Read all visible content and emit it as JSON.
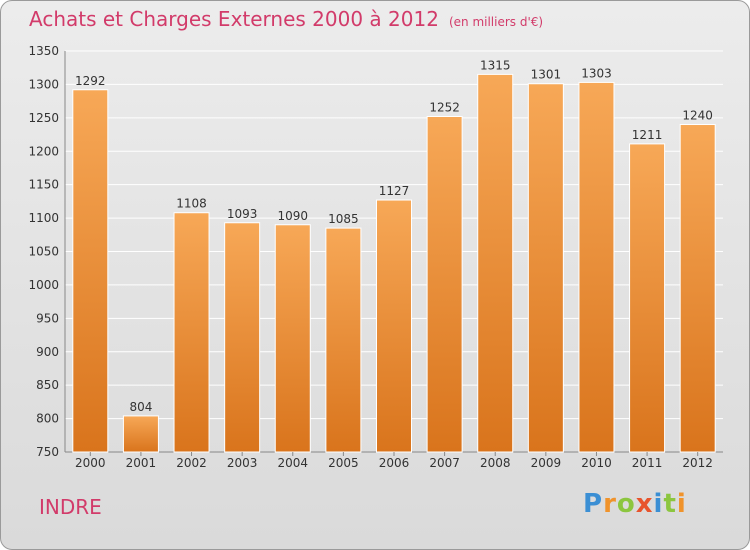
{
  "header": {
    "title": "Achats et Charges Externes 2000 à 2012",
    "subtitle": "(en milliers d'€)"
  },
  "footer": {
    "entity": "INDRE",
    "logo": "Proxiti",
    "logo_letters": [
      {
        "ch": "P",
        "color": "#3b8fd4"
      },
      {
        "ch": "r",
        "color": "#f0932b"
      },
      {
        "ch": "o",
        "color": "#8cc63f"
      },
      {
        "ch": "x",
        "color": "#e8542d"
      },
      {
        "ch": "i",
        "color": "#3b8fd4"
      },
      {
        "ch": "t",
        "color": "#8cc63f"
      },
      {
        "ch": "i",
        "color": "#f0932b"
      }
    ]
  },
  "colors": {
    "title": "#d23b6a",
    "bar_top": "#f7a857",
    "bar_bottom": "#d9741c",
    "grid": "#ffffff",
    "axis_text": "#333333"
  },
  "chart_data": {
    "type": "bar",
    "title": "Achats et Charges Externes 2000 à 2012",
    "subtitle": "(en milliers d'€)",
    "categories": [
      "2000",
      "2001",
      "2002",
      "2003",
      "2004",
      "2005",
      "2006",
      "2007",
      "2008",
      "2009",
      "2010",
      "2011",
      "2012"
    ],
    "values": [
      1292,
      804,
      1108,
      1093,
      1090,
      1085,
      1127,
      1252,
      1315,
      1301,
      1303,
      1211,
      1240
    ],
    "ylim": [
      750,
      1350
    ],
    "yticks": [
      750,
      800,
      850,
      900,
      950,
      1000,
      1050,
      1100,
      1150,
      1200,
      1250,
      1300,
      1350
    ],
    "grid": true,
    "xlabel": "",
    "ylabel": ""
  }
}
